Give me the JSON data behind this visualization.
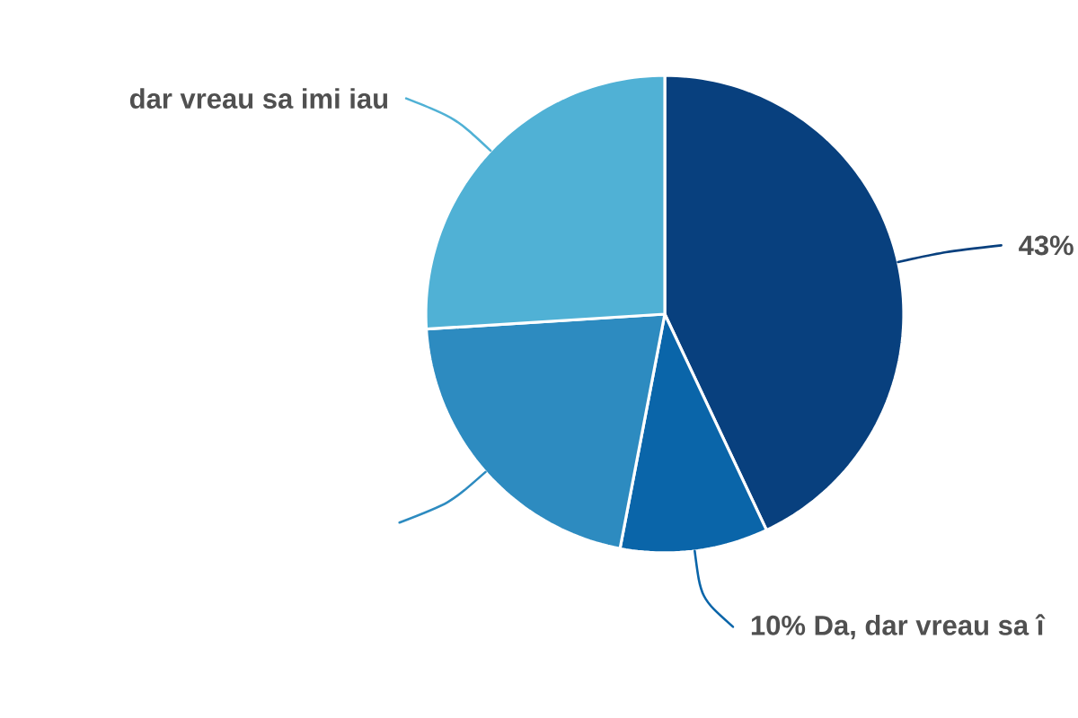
{
  "chart_data": {
    "type": "pie",
    "categories": [
      null,
      "Da, dar vreau sa î",
      null,
      "dar vreau sa imi iau"
    ],
    "values": [
      43,
      10,
      21,
      26
    ],
    "colors": [
      "#08407e",
      "#0a65a9",
      "#2d8bc0",
      "#50b1d5"
    ],
    "value_labels": [
      "43%",
      "10%",
      null,
      null
    ]
  }
}
